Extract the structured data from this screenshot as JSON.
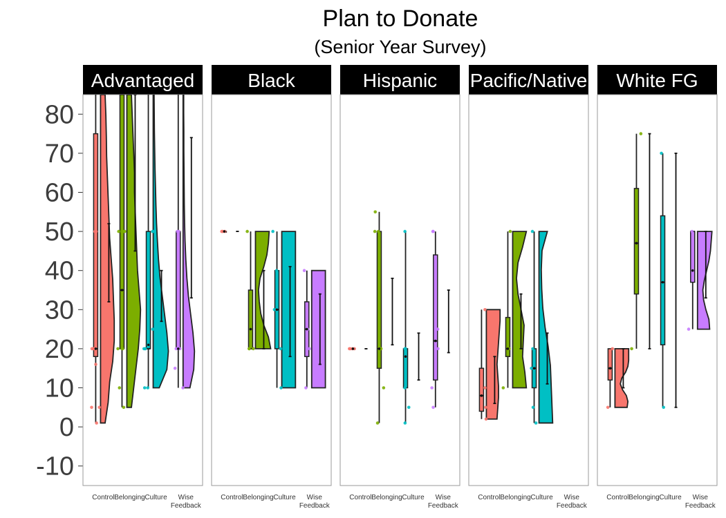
{
  "chart_data": {
    "type": "raincloud",
    "title": "Plan to Donate",
    "subtitle": "(Senior Year Survey)",
    "xlabel": "",
    "ylabel": "",
    "ylim": [
      -15,
      85
    ],
    "yticks": [
      -10,
      0,
      10,
      20,
      30,
      40,
      50,
      60,
      70,
      80
    ],
    "grid": false,
    "conditions": [
      "Control",
      "Belonging",
      "Culture",
      "Wise Feedback"
    ],
    "colors": {
      "Control": "#F8766D",
      "Belonging": "#7CAE00",
      "Culture": "#00BFC4",
      "Wise Feedback": "#C77CFF"
    },
    "facets": [
      {
        "name": "Advantaged",
        "groups": [
          {
            "condition": "Control",
            "box": [
              1,
              18,
              20,
              75,
              85
            ],
            "mean": 20,
            "ci": [
              32,
              52
            ],
            "points": [
              50,
              50,
              20,
              20,
              20,
              16,
              5,
              5,
              1,
              50,
              20
            ],
            "violin": {
              "min": 1,
              "max": 85,
              "widths": [
                0.3,
                0.5,
                0.6,
                0.8,
                0.9,
                0.9,
                0.85,
                0.8,
                0.7,
                0.6,
                0.55,
                0.5,
                0.45,
                0.4,
                0.38,
                0.35,
                0.3
              ]
            }
          },
          {
            "condition": "Belonging",
            "box": [
              5,
              20,
              35,
              85,
              85
            ],
            "mean": 35,
            "ci": [
              45,
              85
            ],
            "points": [
              50,
              50,
              20,
              20,
              10,
              5,
              50,
              20
            ],
            "violin": {
              "min": 5,
              "max": 85,
              "widths": [
                0.3,
                0.45,
                0.6,
                0.75,
                0.85,
                0.9,
                0.8,
                0.7,
                0.65,
                0.6,
                0.55,
                0.5,
                0.5,
                0.45,
                0.4,
                0.35,
                0.3
              ]
            }
          },
          {
            "condition": "Culture",
            "box": [
              10,
              20,
              20,
              50,
              85
            ],
            "mean": 21,
            "ci": [
              27,
              40
            ],
            "points": [
              21,
              20,
              20,
              50,
              50,
              10,
              10,
              25,
              20
            ],
            "violin": {
              "min": 10,
              "max": 85,
              "widths": [
                0.4,
                0.9,
                1.0,
                0.9,
                0.75,
                0.6,
                0.45,
                0.35,
                0.28,
                0.22,
                0.18,
                0.15,
                0.12,
                0.1,
                0.08,
                0.07,
                0.06
              ]
            }
          },
          {
            "condition": "Wise Feedback",
            "box": [
              10,
              20,
              20,
              50,
              85
            ],
            "mean": 20,
            "ci": [
              33,
              74
            ],
            "points": [
              50,
              50,
              20,
              20,
              15,
              10,
              20
            ],
            "violin": {
              "min": 10,
              "max": 85,
              "widths": [
                0.45,
                0.7,
                0.75,
                0.65,
                0.5,
                0.35,
                0.25,
                0.18,
                0.13,
                0.1,
                0.08,
                0.07,
                0.06,
                0.05,
                0.05,
                0.04,
                0.04
              ]
            }
          }
        ]
      },
      {
        "name": "Black",
        "groups": [
          {
            "condition": "Control",
            "box": [
              50,
              50,
              50,
              50,
              50
            ],
            "mean": 50,
            "ci": [
              50,
              50
            ],
            "points": [
              50,
              50,
              50
            ],
            "violin": {
              "min": 50,
              "max": 50,
              "widths": []
            }
          },
          {
            "condition": "Belonging",
            "box": [
              20,
              20,
              20,
              35,
              50
            ],
            "mean": 25,
            "ci": [
              20,
              40
            ],
            "points": [
              50,
              20,
              20,
              20
            ],
            "violin": {
              "min": 20,
              "max": 50,
              "widths": [
                1.0,
                0.85,
                0.55,
                0.35,
                0.25,
                0.2,
                0.3,
                0.55,
                0.75,
                0.85,
                0.9
              ]
            }
          },
          {
            "condition": "Culture",
            "box": [
              10,
              20,
              30,
              40,
              50
            ],
            "mean": 30,
            "ci": [
              18,
              41
            ],
            "points": [
              50,
              10,
              30,
              20,
              40
            ],
            "violin": {
              "min": 10,
              "max": 50,
              "widths": [
                0.9,
                0.9,
                0.9,
                0.9,
                0.9,
                0.9,
                0.9,
                0.9,
                0.9,
                0.9,
                0.9
              ]
            }
          },
          {
            "condition": "Wise Feedback",
            "box": [
              10,
              18,
              25,
              32,
              40
            ],
            "mean": 25,
            "ci": [
              16,
              34
            ],
            "points": [
              40,
              25,
              10,
              20
            ],
            "violin": {
              "min": 10,
              "max": 40,
              "widths": [
                0.9,
                0.9,
                0.9,
                0.9,
                0.9,
                0.9,
                0.9,
                0.9,
                0.9,
                0.9,
                0.9
              ]
            }
          }
        ]
      },
      {
        "name": "Hispanic",
        "groups": [
          {
            "condition": "Control",
            "box": [
              20,
              20,
              20,
              20,
              20
            ],
            "mean": 20,
            "ci": [
              20,
              20
            ],
            "points": [
              20,
              20,
              20,
              20
            ],
            "violin": {
              "min": 20,
              "max": 20,
              "widths": []
            }
          },
          {
            "condition": "Belonging",
            "box": [
              1,
              15,
              20,
              50,
              55
            ],
            "mean": 20,
            "ci": [
              21,
              38
            ],
            "points": [
              55,
              50,
              50,
              20,
              20,
              10,
              1
            ],
            "violin": {
              "min": 1,
              "max": 55,
              "widths": []
            }
          },
          {
            "condition": "Culture",
            "box": [
              1,
              10,
              20,
              20,
              50
            ],
            "mean": 18,
            "ci": [
              12,
              24
            ],
            "points": [
              50,
              20,
              20,
              5,
              1,
              10
            ],
            "violin": {
              "min": 1,
              "max": 50,
              "widths": []
            }
          },
          {
            "condition": "Wise Feedback",
            "box": [
              5,
              12,
              22,
              44,
              50
            ],
            "mean": 22,
            "ci": [
              19,
              35
            ],
            "points": [
              50,
              50,
              25,
              10,
              5,
              20
            ],
            "violin": {
              "min": 5,
              "max": 50,
              "widths": []
            }
          }
        ]
      },
      {
        "name": "Pacific/Native",
        "groups": [
          {
            "condition": "Control",
            "box": [
              2,
              4,
              8,
              15,
              30
            ],
            "mean": 8,
            "ci": [
              6,
              18
            ],
            "points": [
              30,
              2,
              5,
              10
            ],
            "violin": {
              "min": 2,
              "max": 30,
              "widths": [
                0.7,
                0.75,
                0.8,
                0.8,
                0.75,
                0.7,
                0.75,
                0.8,
                0.85,
                0.9,
                0.9
              ]
            }
          },
          {
            "condition": "Belonging",
            "box": [
              10,
              18,
              20,
              28,
              50
            ],
            "mean": 20,
            "ci": [
              20,
              34
            ],
            "points": [
              50,
              20,
              20,
              10
            ],
            "violin": {
              "min": 10,
              "max": 50,
              "widths": [
                0.9,
                0.8,
                0.65,
                0.7,
                0.75,
                0.55,
                0.35,
                0.25,
                0.35,
                0.65,
                0.9
              ]
            }
          },
          {
            "condition": "Culture",
            "box": [
              1,
              10,
              15,
              20,
              50
            ],
            "mean": 15,
            "ci": [
              11,
              24
            ],
            "points": [
              50,
              20,
              15,
              5,
              1
            ],
            "violin": {
              "min": 1,
              "max": 50,
              "widths": [
                0.9,
                0.85,
                0.8,
                0.75,
                0.6,
                0.4,
                0.25,
                0.18,
                0.15,
                0.2,
                0.55
              ]
            }
          },
          {
            "condition": "Wise Feedback",
            "box": [],
            "mean": null,
            "ci": [],
            "points": [],
            "violin": {
              "min": 0,
              "max": 0,
              "widths": []
            }
          }
        ]
      },
      {
        "name": "White FG",
        "groups": [
          {
            "condition": "Control",
            "box": [
              5,
              12,
              15,
              20,
              20
            ],
            "mean": 15,
            "ci": [
              10,
              20
            ],
            "points": [
              20,
              5
            ],
            "violin": {
              "min": 5,
              "max": 20,
              "widths": [
                0.8,
                0.85,
                0.75,
                0.5,
                0.35,
                0.45,
                0.7,
                0.85,
                0.9,
                0.9,
                0.9
              ]
            }
          },
          {
            "condition": "Belonging",
            "box": [
              20,
              34,
              47,
              61,
              75
            ],
            "mean": 47,
            "ci": [
              20,
              75
            ],
            "points": [
              75,
              20
            ],
            "violin": {
              "min": 20,
              "max": 75,
              "widths": []
            }
          },
          {
            "condition": "Culture",
            "box": [
              5,
              21,
              37,
              54,
              70
            ],
            "mean": 37,
            "ci": [
              5,
              70
            ],
            "points": [
              70,
              5
            ],
            "violin": {
              "min": 5,
              "max": 70,
              "widths": []
            }
          },
          {
            "condition": "Wise Feedback",
            "box": [
              25,
              37,
              50,
              50,
              50
            ],
            "mean": 40,
            "ci": [
              33,
              50
            ],
            "points": [
              50,
              25
            ],
            "violin": {
              "min": 25,
              "max": 50,
              "widths": [
                0.8,
                0.75,
                0.55,
                0.4,
                0.35,
                0.45,
                0.6,
                0.75,
                0.85,
                0.9,
                0.95
              ]
            }
          }
        ]
      }
    ]
  },
  "labels": {
    "x_ticks": [
      {
        "line1": "Control",
        "line2": ""
      },
      {
        "line1": "Belonging",
        "line2": ""
      },
      {
        "line1": "Culture",
        "line2": ""
      },
      {
        "line1": "Wise",
        "line2": "Feedback"
      }
    ]
  }
}
